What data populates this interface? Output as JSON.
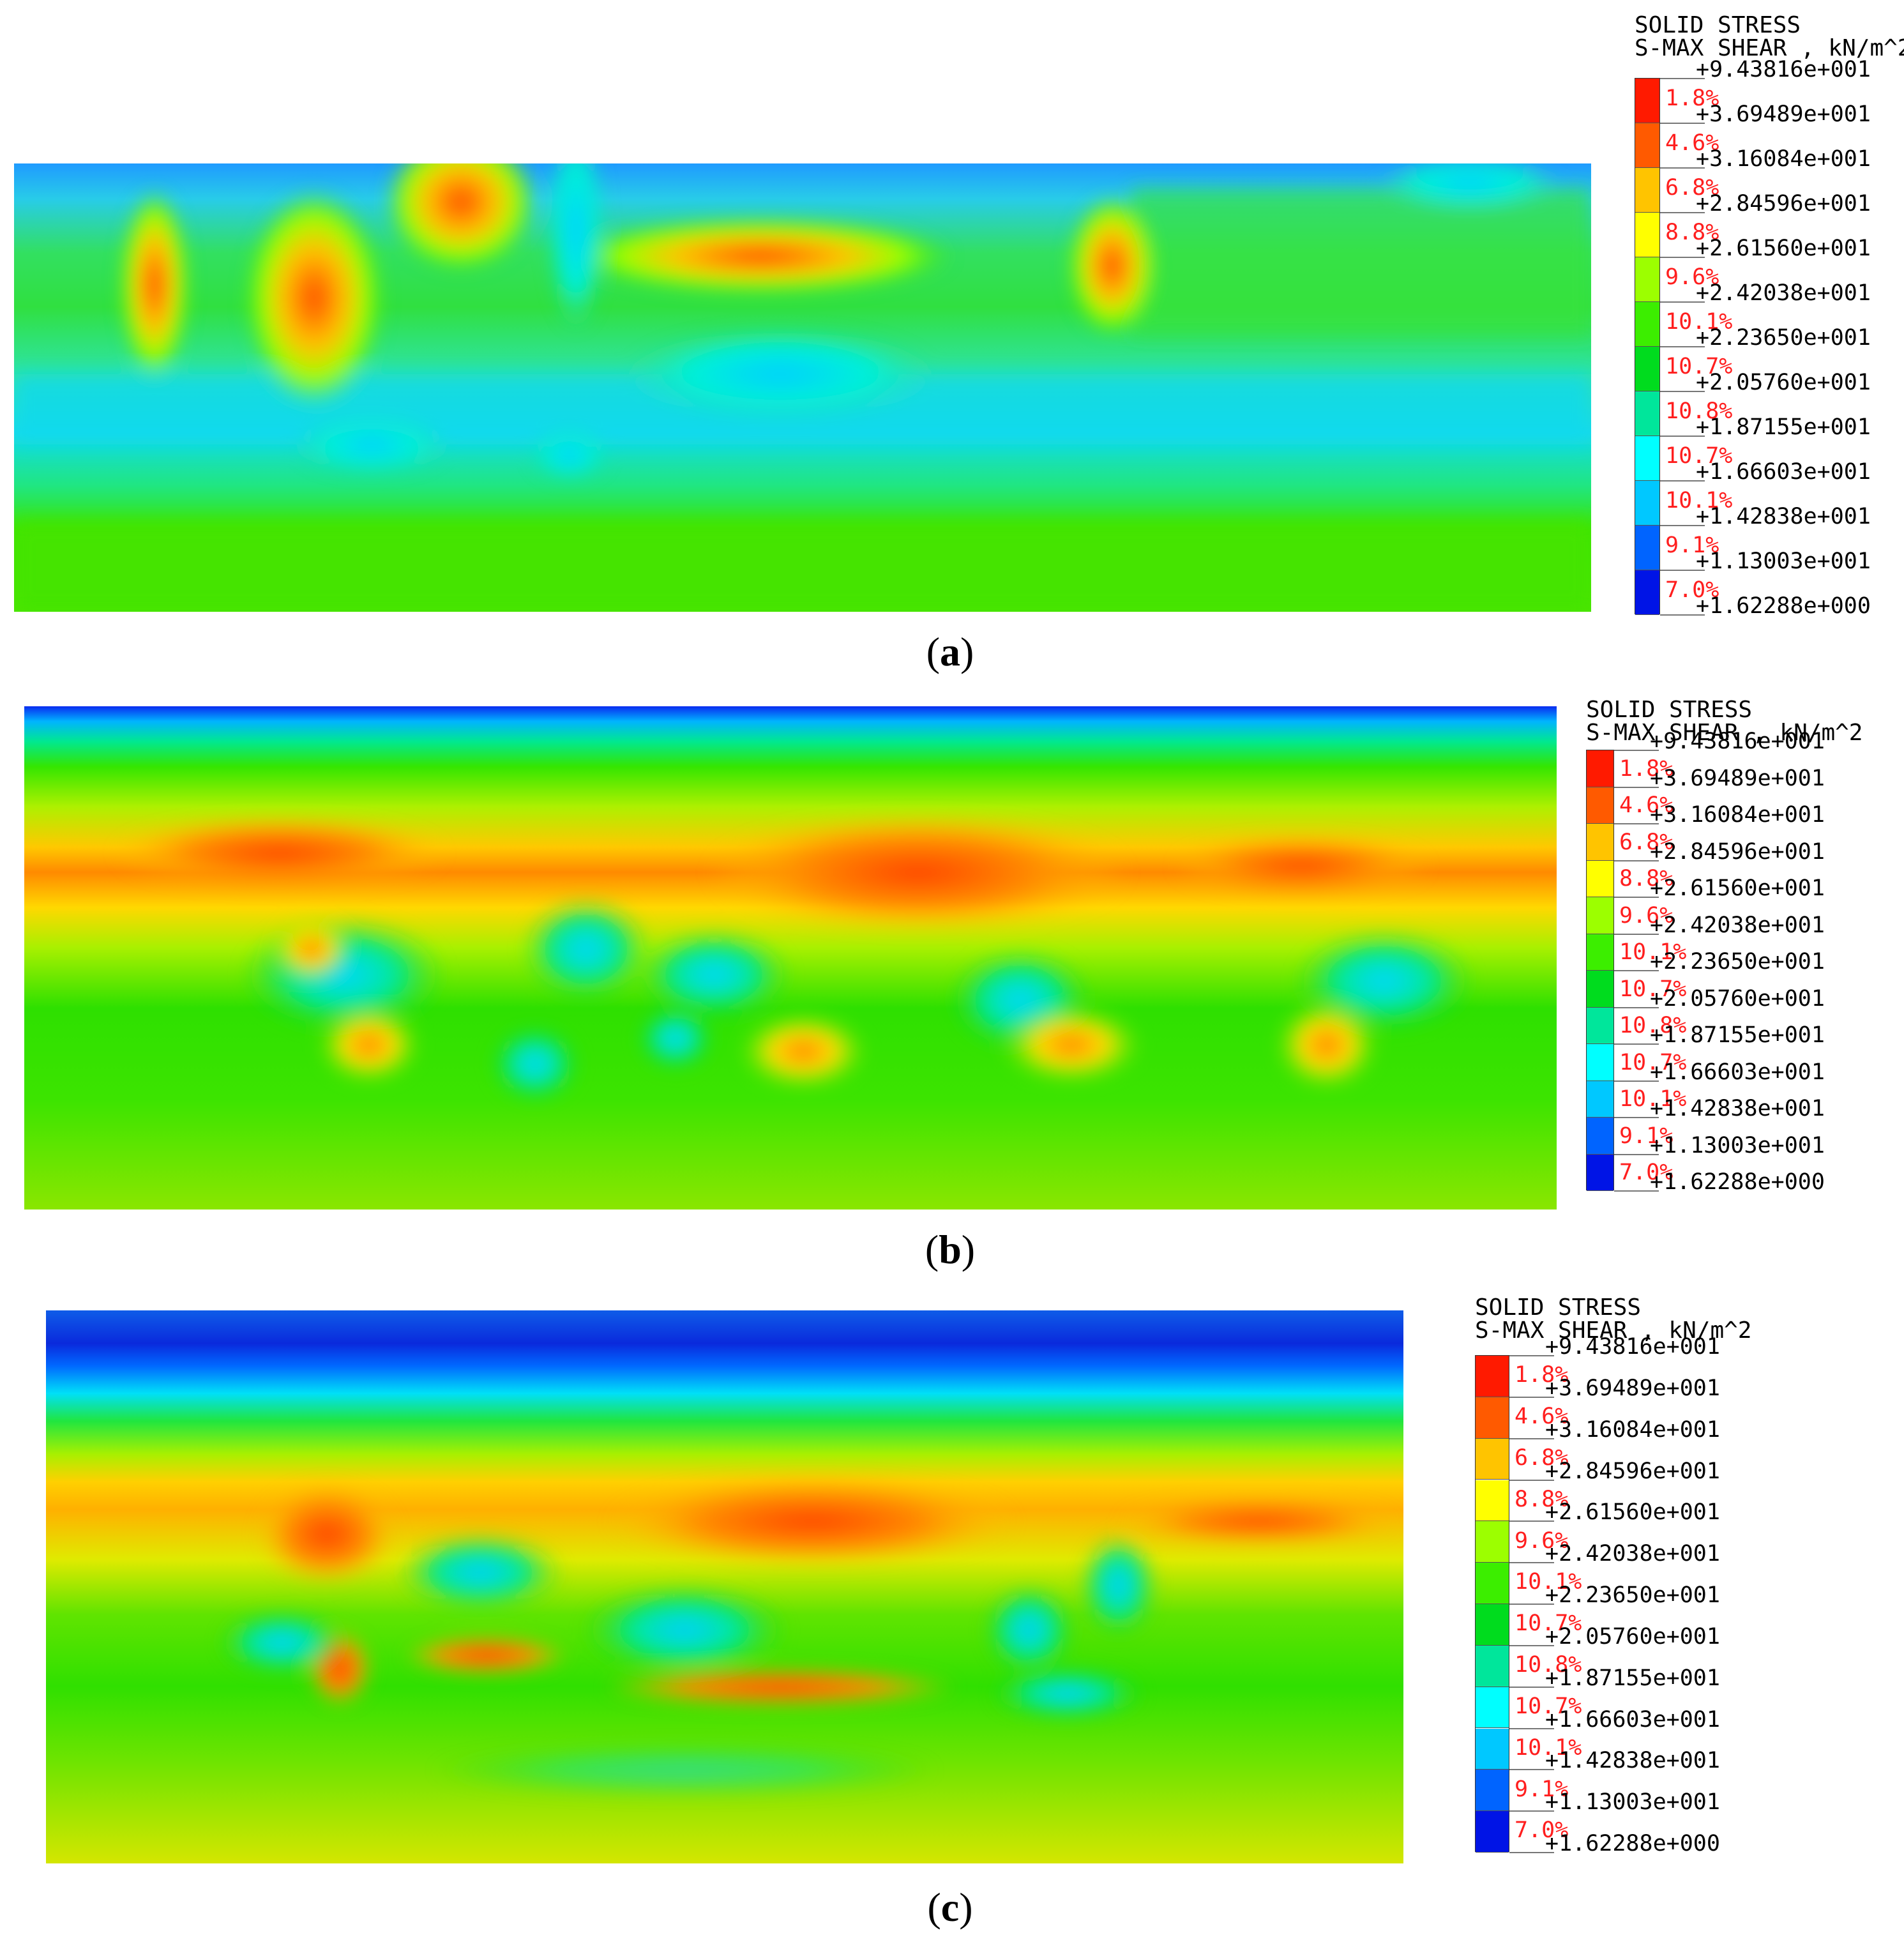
{
  "panels": [
    {
      "id": "a",
      "caption_label": "a",
      "legend": {
        "title_line1": "SOLID STRESS",
        "title_line2": "S-MAX SHEAR , kN/m^2",
        "values": [
          "+9.43816e+001",
          "+3.69489e+001",
          "+3.16084e+001",
          "+2.84596e+001",
          "+2.61560e+001",
          "+2.42038e+001",
          "+2.23650e+001",
          "+2.05760e+001",
          "+1.87155e+001",
          "+1.66603e+001",
          "+1.42838e+001",
          "+1.13003e+001",
          "+1.62288e+000"
        ],
        "percents": [
          "1.8%",
          "4.6%",
          "6.8%",
          "8.8%",
          "9.6%",
          "10.1%",
          "10.7%",
          "10.8%",
          "10.7%",
          "10.1%",
          "9.1%",
          "7.0%"
        ]
      }
    },
    {
      "id": "b",
      "caption_label": "b",
      "legend": {
        "title_line1": "SOLID STRESS",
        "title_line2": "S-MAX SHEAR , kN/m^2",
        "values": [
          "+9.43816e+001",
          "+3.69489e+001",
          "+3.16084e+001",
          "+2.84596e+001",
          "+2.61560e+001",
          "+2.42038e+001",
          "+2.23650e+001",
          "+2.05760e+001",
          "+1.87155e+001",
          "+1.66603e+001",
          "+1.42838e+001",
          "+1.13003e+001",
          "+1.62288e+000"
        ],
        "percents": [
          "1.8%",
          "4.6%",
          "6.8%",
          "8.8%",
          "9.6%",
          "10.1%",
          "10.7%",
          "10.8%",
          "10.7%",
          "10.1%",
          "9.1%",
          "7.0%"
        ]
      }
    },
    {
      "id": "c",
      "caption_label": "c",
      "legend": {
        "title_line1": "SOLID STRESS",
        "title_line2": "S-MAX SHEAR , kN/m^2",
        "values": [
          "+9.43816e+001",
          "+3.69489e+001",
          "+3.16084e+001",
          "+2.84596e+001",
          "+2.61560e+001",
          "+2.42038e+001",
          "+2.23650e+001",
          "+2.05760e+001",
          "+1.87155e+001",
          "+1.66603e+001",
          "+1.42838e+001",
          "+1.13003e+001",
          "+1.62288e+000"
        ],
        "percents": [
          "1.8%",
          "4.6%",
          "6.8%",
          "8.8%",
          "9.6%",
          "10.1%",
          "10.7%",
          "10.8%",
          "10.7%",
          "10.1%",
          "9.1%",
          "7.0%"
        ]
      }
    }
  ],
  "colors": {
    "band_colors_top_to_bottom": [
      "#ff1a00",
      "#ff5a00",
      "#ffc400",
      "#ffff00",
      "#9cff00",
      "#3cee00",
      "#00dc1e",
      "#00e69b",
      "#00ffff",
      "#00c8ff",
      "#0064ff",
      "#0014e6"
    ],
    "percent_text": "#ff1e1e"
  }
}
